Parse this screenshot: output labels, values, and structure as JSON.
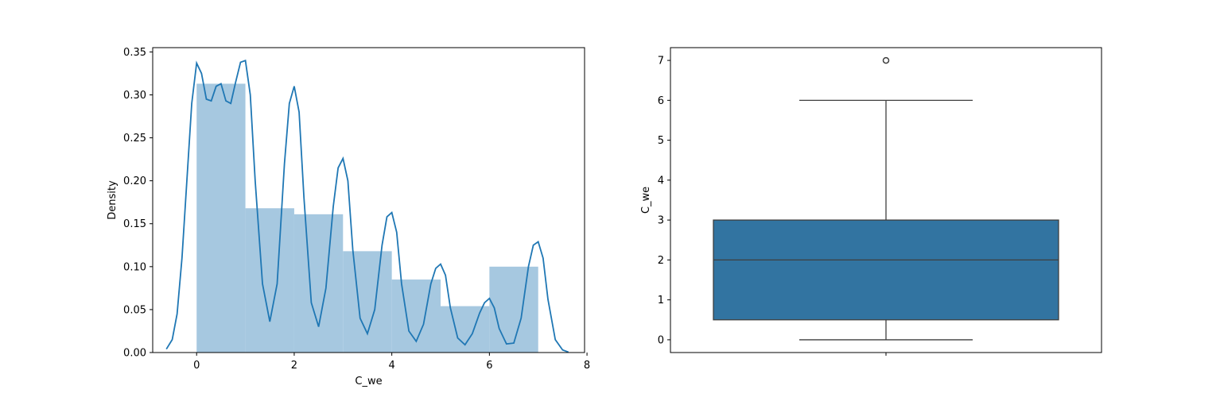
{
  "chart_data": [
    {
      "type": "bar",
      "subtype": "histogram-with-kde",
      "xlabel": "C_we",
      "ylabel": "Density",
      "xlim": [
        -0.9,
        7.95
      ],
      "ylim": [
        0,
        0.355
      ],
      "xticks": [
        0,
        2,
        4,
        6,
        8
      ],
      "xtick_labels": [
        "0",
        "2",
        "4",
        "6",
        "8"
      ],
      "yticks": [
        0.0,
        0.05,
        0.1,
        0.15,
        0.2,
        0.25,
        0.3,
        0.35
      ],
      "ytick_labels": [
        "0.00",
        "0.05",
        "0.10",
        "0.15",
        "0.20",
        "0.25",
        "0.30",
        "0.35"
      ],
      "bins": [
        {
          "x0": 0,
          "x1": 1,
          "value": 0.313
        },
        {
          "x0": 1,
          "x1": 2,
          "value": 0.168
        },
        {
          "x0": 2,
          "x1": 3,
          "value": 0.161
        },
        {
          "x0": 3,
          "x1": 4,
          "value": 0.118
        },
        {
          "x0": 4,
          "x1": 5,
          "value": 0.085
        },
        {
          "x0": 5,
          "x1": 6,
          "value": 0.054
        },
        {
          "x0": 6,
          "x1": 7,
          "value": 0.1
        }
      ],
      "kde": {
        "x": [
          -0.62,
          -0.5,
          -0.4,
          -0.3,
          -0.2,
          -0.1,
          0.0,
          0.1,
          0.2,
          0.3,
          0.4,
          0.5,
          0.6,
          0.7,
          0.8,
          0.9,
          1.0,
          1.1,
          1.2,
          1.35,
          1.5,
          1.65,
          1.8,
          1.9,
          2.0,
          2.1,
          2.2,
          2.35,
          2.5,
          2.65,
          2.8,
          2.9,
          3.0,
          3.1,
          3.2,
          3.35,
          3.5,
          3.65,
          3.8,
          3.9,
          4.0,
          4.1,
          4.2,
          4.35,
          4.5,
          4.65,
          4.8,
          4.9,
          5.0,
          5.1,
          5.2,
          5.35,
          5.5,
          5.65,
          5.8,
          5.9,
          6.0,
          6.1,
          6.2,
          6.35,
          6.5,
          6.65,
          6.8,
          6.9,
          7.0,
          7.1,
          7.2,
          7.35,
          7.5,
          7.62
        ],
        "y": [
          0.004,
          0.015,
          0.045,
          0.11,
          0.2,
          0.29,
          0.337,
          0.325,
          0.295,
          0.293,
          0.31,
          0.313,
          0.293,
          0.29,
          0.315,
          0.338,
          0.34,
          0.3,
          0.2,
          0.08,
          0.036,
          0.08,
          0.22,
          0.29,
          0.31,
          0.28,
          0.18,
          0.058,
          0.03,
          0.075,
          0.17,
          0.215,
          0.226,
          0.2,
          0.12,
          0.04,
          0.022,
          0.05,
          0.125,
          0.158,
          0.163,
          0.14,
          0.08,
          0.025,
          0.013,
          0.033,
          0.08,
          0.098,
          0.103,
          0.09,
          0.052,
          0.017,
          0.009,
          0.022,
          0.046,
          0.058,
          0.063,
          0.052,
          0.028,
          0.01,
          0.011,
          0.04,
          0.1,
          0.125,
          0.129,
          0.11,
          0.062,
          0.015,
          0.003,
          0.0005
        ]
      }
    },
    {
      "type": "box",
      "ylabel": "C_we",
      "ylim": [
        -0.32,
        7.32
      ],
      "yticks": [
        0,
        1,
        2,
        3,
        4,
        5,
        6,
        7
      ],
      "ytick_labels": [
        "0",
        "1",
        "2",
        "3",
        "4",
        "5",
        "6",
        "7"
      ],
      "whisker_low": 0,
      "q1": 0.5,
      "median": 2,
      "q3": 3,
      "whisker_high": 6,
      "outliers": [
        7
      ],
      "color": "#3274a1"
    }
  ],
  "colors": {
    "hist_fill": "#a6c8e0",
    "kde_line": "#1f77b4",
    "box_fill": "#3274a1",
    "box_edge": "#3f3f3f"
  }
}
